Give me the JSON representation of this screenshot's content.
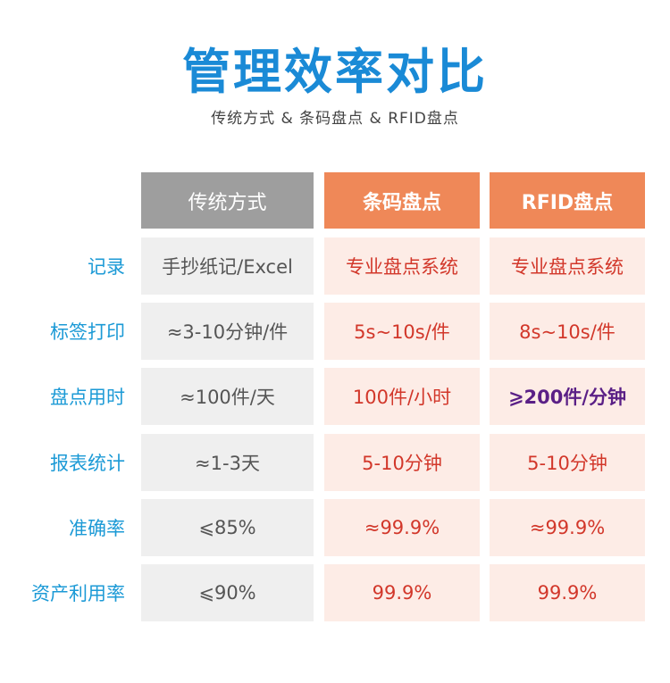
{
  "title": "管理效率对比",
  "subtitle": "传统方式 & 条码盘点 & RFID盘点",
  "headers": [
    "传统方式",
    "条码盘点",
    "RFID盘点"
  ],
  "rows": [
    {
      "label": "记录",
      "values": [
        "手抄纸记/Excel",
        "专业盘点系统",
        "专业盘点系统"
      ]
    },
    {
      "label": "标签打印",
      "values": [
        "≈3-10分钟/件",
        "5s~10s/件",
        "8s~10s/件"
      ]
    },
    {
      "label": "盘点用时",
      "values": [
        "≈100件/天",
        "100件/小时",
        "⩾200件/分钟"
      ]
    },
    {
      "label": "报表统计",
      "values": [
        "≈1-3天",
        "5-10分钟",
        "5-10分钟"
      ]
    },
    {
      "label": "准确率",
      "values": [
        "⩽85%",
        "≈99.9%",
        "≈99.9%"
      ]
    },
    {
      "label": "资产利用率",
      "values": [
        "⩽90%",
        "99.9%",
        "99.9%"
      ]
    }
  ]
}
